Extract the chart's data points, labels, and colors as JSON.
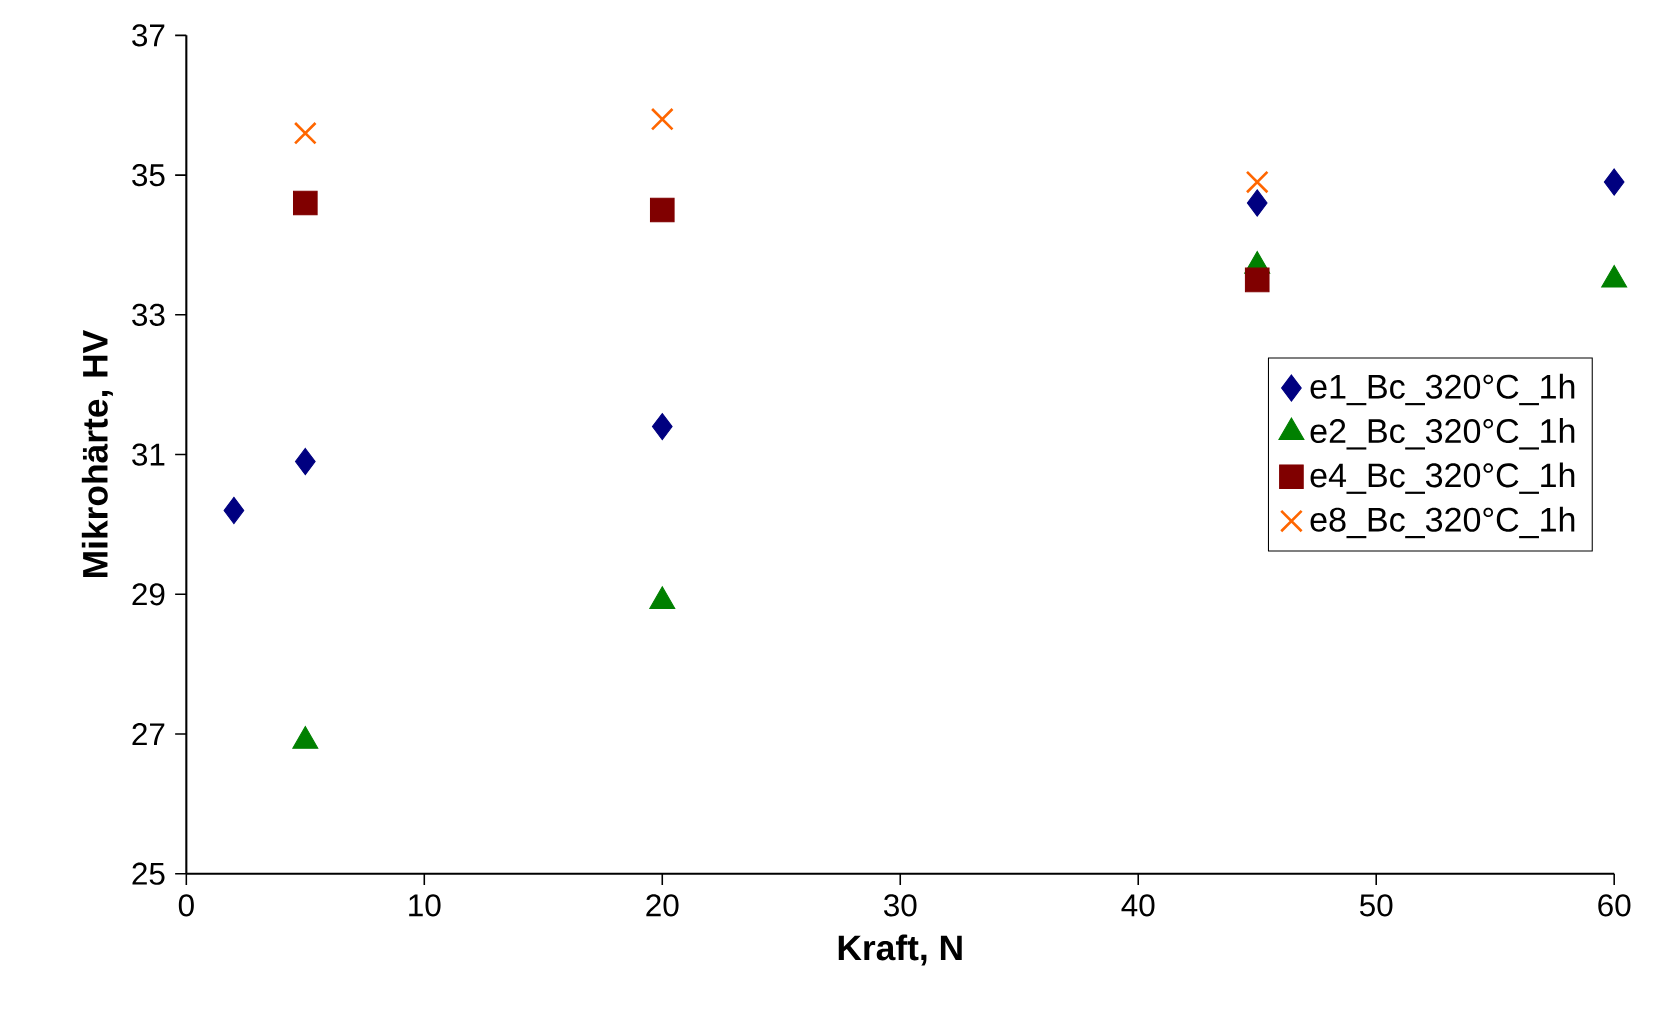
{
  "chart_data": {
    "type": "scatter",
    "xlabel": "Kraft, N",
    "ylabel": "Mikrohärte, HV",
    "xlim": [
      0,
      60
    ],
    "ylim": [
      25,
      37
    ],
    "xticks": [
      0,
      10,
      20,
      30,
      40,
      50,
      60
    ],
    "yticks": [
      25,
      27,
      29,
      31,
      33,
      35,
      37
    ],
    "grid": false,
    "legend": "right",
    "series": [
      {
        "name": "e1_Bc_320°C_1h",
        "color": "#000080",
        "marker": "diamond",
        "x": [
          2,
          5,
          20,
          45,
          60
        ],
        "values": [
          30.2,
          30.9,
          31.4,
          34.6,
          34.9
        ]
      },
      {
        "name": "e2_Bc_320°C_1h",
        "color": "#008000",
        "marker": "triangle",
        "x": [
          5,
          20,
          45,
          60
        ],
        "values": [
          26.9,
          28.9,
          33.7,
          33.5
        ]
      },
      {
        "name": "e4_Bc_320°C_1h",
        "color": "#800000",
        "marker": "square",
        "x": [
          5,
          20,
          45
        ],
        "values": [
          34.6,
          34.5,
          33.5
        ]
      },
      {
        "name": "e8_Bc_320°C_1h",
        "color": "#ff6600",
        "marker": "cross",
        "x": [
          5,
          20,
          45
        ],
        "values": [
          35.6,
          35.8,
          34.9
        ]
      }
    ]
  }
}
